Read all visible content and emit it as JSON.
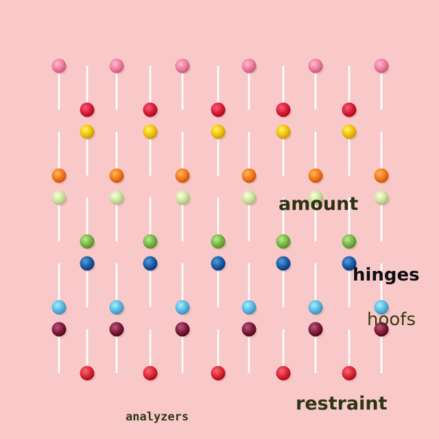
{
  "photo": {
    "subject": "lollipops",
    "background_color": "#f9c9c9",
    "stick_color": "#ffffff",
    "row_colors": [
      "#ee7f9d",
      "#d61f3b",
      "#f2c015",
      "#f27a1e",
      "#cfe3a3",
      "#79b54a",
      "#1d5fa3",
      "#5fb8e0",
      "#7e1d3e",
      "#d82a3a"
    ]
  },
  "overlay_words": {
    "amount": "amount",
    "hinges": "hinges",
    "hoofs": "hoofs",
    "restraint": "restraint",
    "analyzers": "analyzers"
  }
}
